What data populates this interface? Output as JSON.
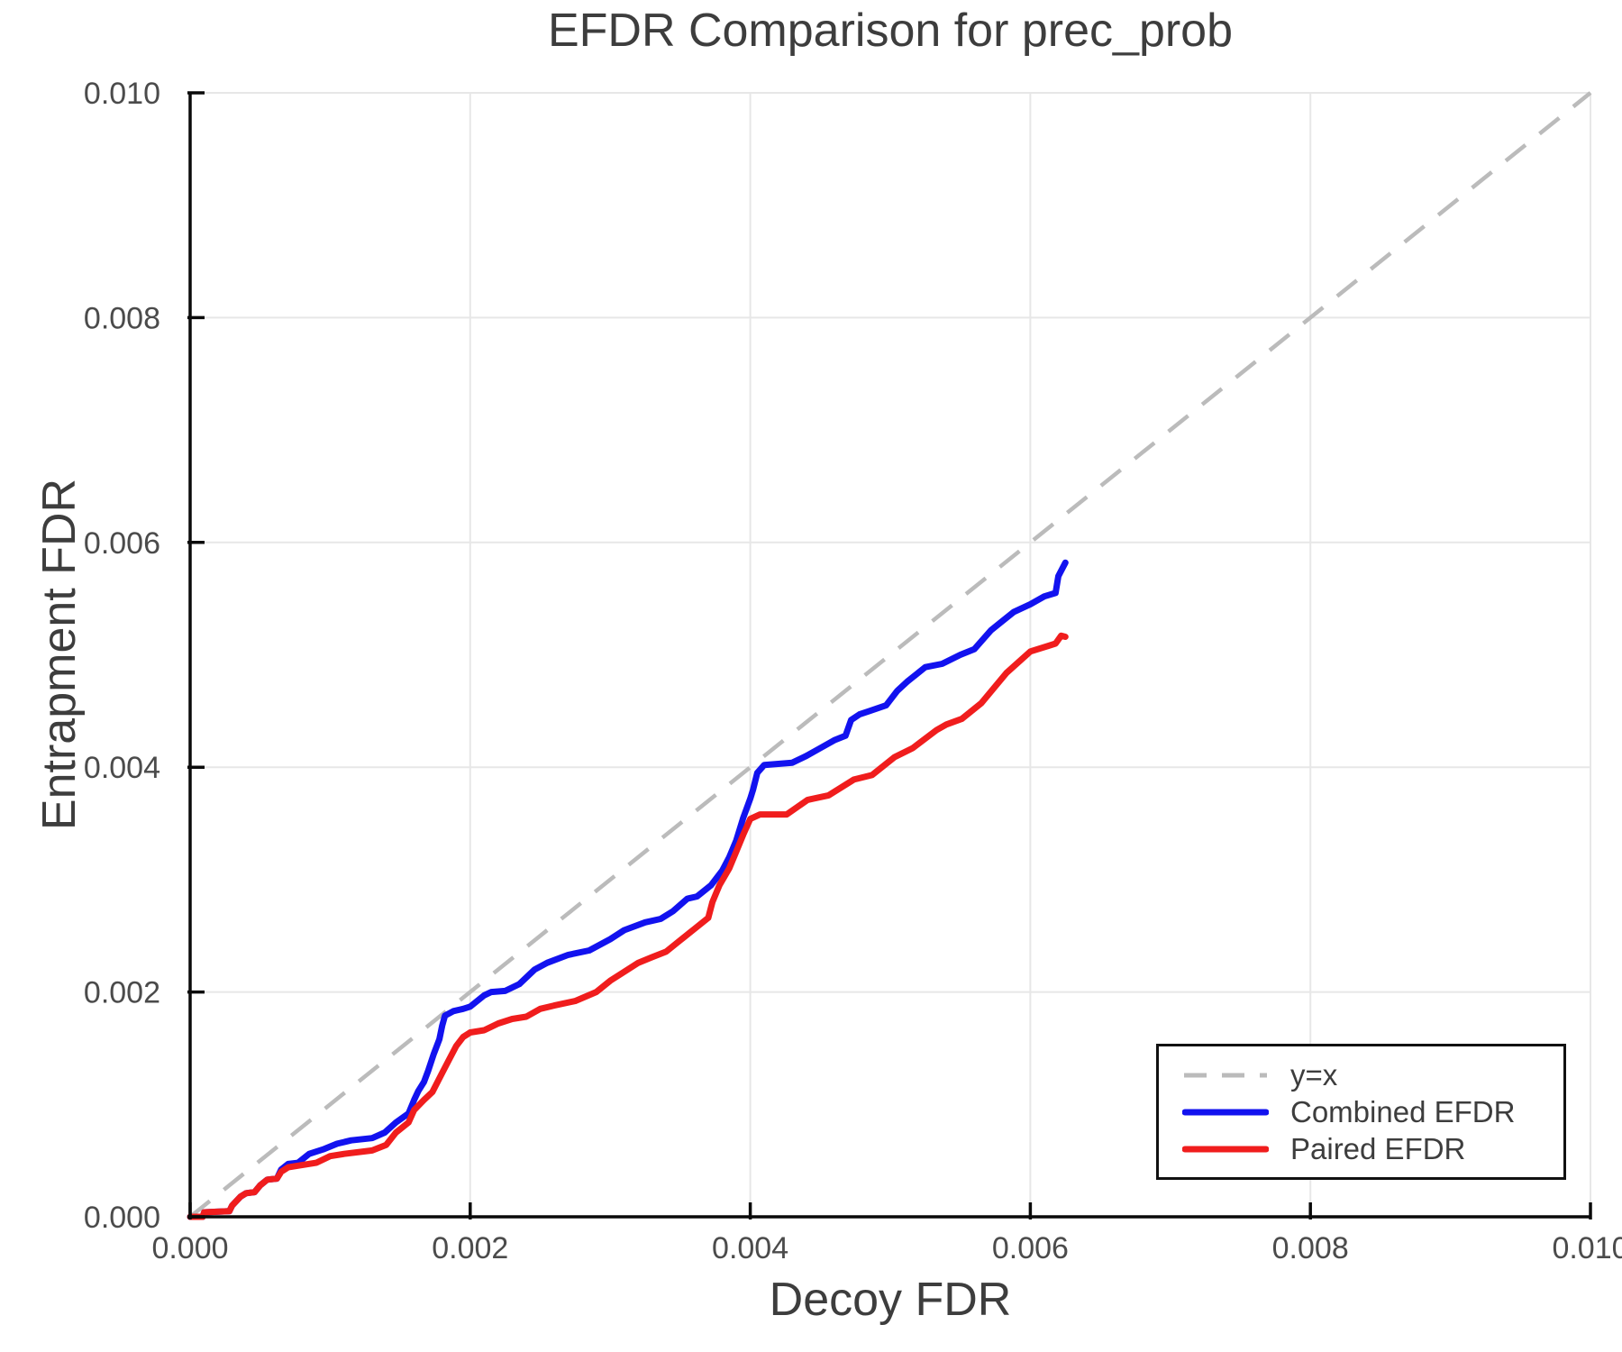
{
  "chart_data": {
    "type": "line",
    "title": "EFDR Comparison for prec_prob",
    "xlabel": "Decoy FDR",
    "ylabel": "Entrapment FDR",
    "xlim": [
      0,
      0.01
    ],
    "ylim": [
      0,
      0.01
    ],
    "xtick_values": [
      0,
      0.002,
      0.004,
      0.006,
      0.008,
      0.01
    ],
    "xtick_labels": [
      "0.000",
      "0.002",
      "0.004",
      "0.006",
      "0.008",
      "0.010"
    ],
    "ytick_values": [
      0,
      0.002,
      0.004,
      0.006,
      0.008,
      0.01
    ],
    "ytick_labels": [
      "0.000",
      "0.002",
      "0.004",
      "0.006",
      "0.008",
      "0.010"
    ],
    "grid": true,
    "legend_position": "bottom-right",
    "reference_line": {
      "label": "y=x",
      "color": "#bbbbbb",
      "dashed": true,
      "points": [
        [
          0,
          0
        ],
        [
          0.01,
          0.01
        ]
      ]
    },
    "series": [
      {
        "name": "Combined EFDR",
        "color": "#1212ef",
        "points": [
          [
            0,
            0
          ],
          [
            9e-05,
            0
          ],
          [
            0.0001,
            4e-05
          ],
          [
            0.00028,
            5e-05
          ],
          [
            0.0003,
            0.0001
          ],
          [
            0.00036,
            0.00018
          ],
          [
            0.0004,
            0.00021
          ],
          [
            0.00046,
            0.00022
          ],
          [
            0.0005,
            0.00028
          ],
          [
            0.00055,
            0.00033
          ],
          [
            0.00062,
            0.00034
          ],
          [
            0.00065,
            0.00042
          ],
          [
            0.0007,
            0.00047
          ],
          [
            0.00077,
            0.00048
          ],
          [
            0.00085,
            0.00056
          ],
          [
            0.00095,
            0.0006
          ],
          [
            0.00105,
            0.00065
          ],
          [
            0.00115,
            0.00068
          ],
          [
            0.0013,
            0.0007
          ],
          [
            0.00139,
            0.00075
          ],
          [
            0.00147,
            0.00084
          ],
          [
            0.00156,
            0.00092
          ],
          [
            0.0016,
            0.00104
          ],
          [
            0.00163,
            0.00112
          ],
          [
            0.00167,
            0.0012
          ],
          [
            0.0017,
            0.0013
          ],
          [
            0.00174,
            0.00145
          ],
          [
            0.00178,
            0.00158
          ],
          [
            0.0018,
            0.0017
          ],
          [
            0.00182,
            0.00179
          ],
          [
            0.00188,
            0.00183
          ],
          [
            0.00195,
            0.00185
          ],
          [
            0.002,
            0.00187
          ],
          [
            0.0021,
            0.00197
          ],
          [
            0.00215,
            0.002
          ],
          [
            0.00225,
            0.00201
          ],
          [
            0.00235,
            0.00207
          ],
          [
            0.00246,
            0.0022
          ],
          [
            0.00255,
            0.00226
          ],
          [
            0.0027,
            0.00233
          ],
          [
            0.00285,
            0.00237
          ],
          [
            0.003,
            0.00247
          ],
          [
            0.0031,
            0.00255
          ],
          [
            0.00325,
            0.00262
          ],
          [
            0.00336,
            0.00265
          ],
          [
            0.00345,
            0.00272
          ],
          [
            0.00355,
            0.00283
          ],
          [
            0.00362,
            0.00285
          ],
          [
            0.00372,
            0.00295
          ],
          [
            0.0038,
            0.00308
          ],
          [
            0.00385,
            0.0032
          ],
          [
            0.0039,
            0.00335
          ],
          [
            0.00395,
            0.00355
          ],
          [
            0.004,
            0.00372
          ],
          [
            0.00402,
            0.0038
          ],
          [
            0.00405,
            0.00395
          ],
          [
            0.0041,
            0.00402
          ],
          [
            0.0043,
            0.00404
          ],
          [
            0.0044,
            0.0041
          ],
          [
            0.0045,
            0.00417
          ],
          [
            0.0046,
            0.00424
          ],
          [
            0.00468,
            0.00428
          ],
          [
            0.00472,
            0.00442
          ],
          [
            0.00478,
            0.00447
          ],
          [
            0.00485,
            0.0045
          ],
          [
            0.00497,
            0.00455
          ],
          [
            0.00505,
            0.00468
          ],
          [
            0.00512,
            0.00476
          ],
          [
            0.00525,
            0.00489
          ],
          [
            0.00537,
            0.00492
          ],
          [
            0.0055,
            0.005
          ],
          [
            0.0056,
            0.00505
          ],
          [
            0.00572,
            0.00522
          ],
          [
            0.0058,
            0.0053
          ],
          [
            0.00588,
            0.00538
          ],
          [
            0.006,
            0.00545
          ],
          [
            0.0061,
            0.00552
          ],
          [
            0.00618,
            0.00555
          ],
          [
            0.0062,
            0.0057
          ],
          [
            0.00625,
            0.00582
          ]
        ]
      },
      {
        "name": "Paired EFDR",
        "color": "#f01d1d",
        "points": [
          [
            0,
            0
          ],
          [
            9e-05,
            0
          ],
          [
            0.0001,
            4e-05
          ],
          [
            0.00028,
            5e-05
          ],
          [
            0.0003,
            0.0001
          ],
          [
            0.00036,
            0.00018
          ],
          [
            0.0004,
            0.00021
          ],
          [
            0.00046,
            0.00022
          ],
          [
            0.0005,
            0.00028
          ],
          [
            0.00055,
            0.00033
          ],
          [
            0.00062,
            0.00034
          ],
          [
            0.00065,
            0.0004
          ],
          [
            0.0007,
            0.00044
          ],
          [
            0.0008,
            0.00046
          ],
          [
            0.0009,
            0.00048
          ],
          [
            0.001,
            0.00054
          ],
          [
            0.0011,
            0.00056
          ],
          [
            0.0013,
            0.00059
          ],
          [
            0.0014,
            0.00064
          ],
          [
            0.00147,
            0.00075
          ],
          [
            0.00156,
            0.00084
          ],
          [
            0.0016,
            0.00095
          ],
          [
            0.00167,
            0.00104
          ],
          [
            0.00173,
            0.00111
          ],
          [
            0.0018,
            0.00128
          ],
          [
            0.00185,
            0.0014
          ],
          [
            0.0019,
            0.00152
          ],
          [
            0.00195,
            0.0016
          ],
          [
            0.002,
            0.00164
          ],
          [
            0.0021,
            0.00166
          ],
          [
            0.0022,
            0.00172
          ],
          [
            0.0023,
            0.00176
          ],
          [
            0.0024,
            0.00178
          ],
          [
            0.0025,
            0.00185
          ],
          [
            0.0026,
            0.00188
          ],
          [
            0.00275,
            0.00192
          ],
          [
            0.0029,
            0.002
          ],
          [
            0.003,
            0.0021
          ],
          [
            0.0031,
            0.00218
          ],
          [
            0.0032,
            0.00226
          ],
          [
            0.0033,
            0.00231
          ],
          [
            0.0034,
            0.00236
          ],
          [
            0.0035,
            0.00246
          ],
          [
            0.0036,
            0.00256
          ],
          [
            0.0037,
            0.00266
          ],
          [
            0.00373,
            0.0028
          ],
          [
            0.00378,
            0.00295
          ],
          [
            0.00385,
            0.0031
          ],
          [
            0.0039,
            0.00325
          ],
          [
            0.00395,
            0.0034
          ],
          [
            0.004,
            0.00354
          ],
          [
            0.00407,
            0.00358
          ],
          [
            0.00426,
            0.00358
          ],
          [
            0.00441,
            0.00371
          ],
          [
            0.00456,
            0.00375
          ],
          [
            0.00474,
            0.00389
          ],
          [
            0.00487,
            0.00393
          ],
          [
            0.00503,
            0.00409
          ],
          [
            0.00516,
            0.00417
          ],
          [
            0.00533,
            0.00433
          ],
          [
            0.0054,
            0.00438
          ],
          [
            0.00551,
            0.00443
          ],
          [
            0.00565,
            0.00457
          ],
          [
            0.00583,
            0.00484
          ],
          [
            0.006,
            0.00503
          ],
          [
            0.00613,
            0.00508
          ],
          [
            0.00618,
            0.0051
          ],
          [
            0.00622,
            0.00517
          ],
          [
            0.00625,
            0.00516
          ]
        ]
      }
    ]
  }
}
